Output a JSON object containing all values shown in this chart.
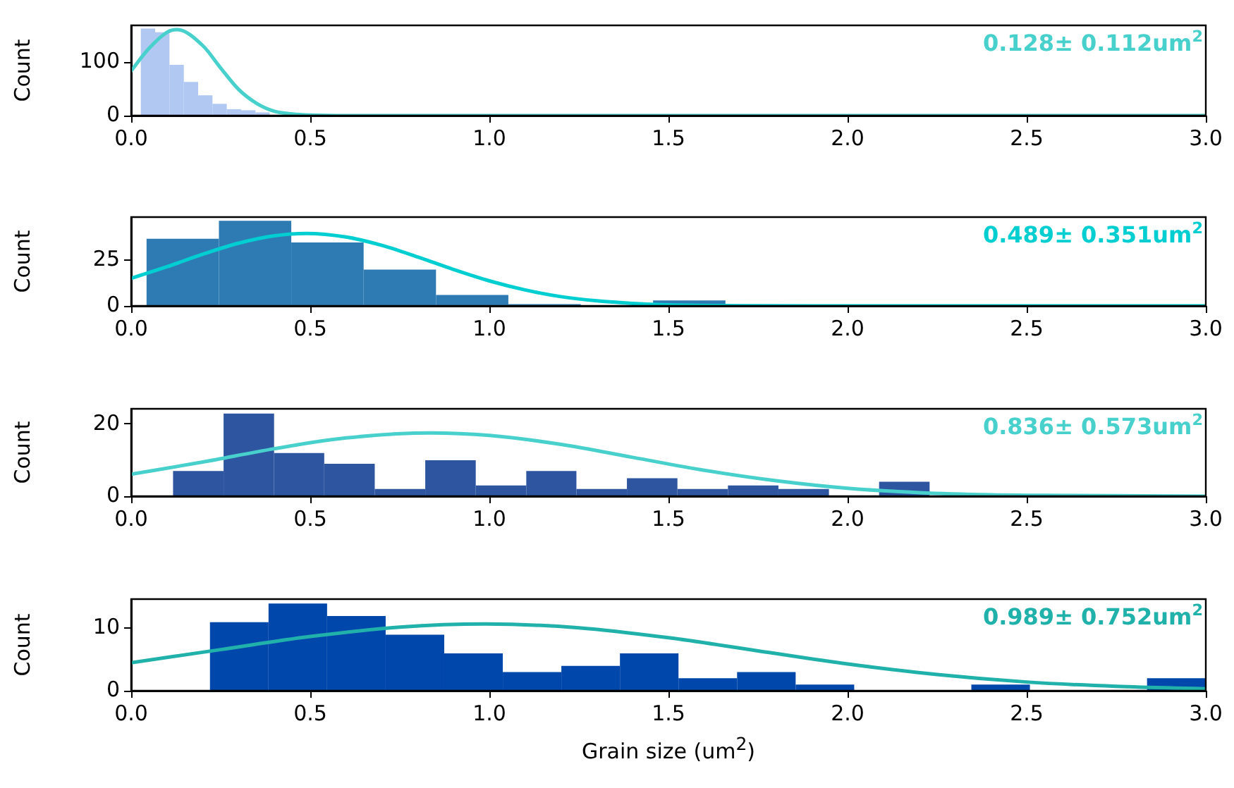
{
  "chart_data": [
    {
      "type": "histogram",
      "ylabel": "Count",
      "xlim": [
        0,
        3
      ],
      "ylim": [
        0,
        169
      ],
      "xticks": [
        {
          "value": 0,
          "label": "0.0"
        },
        {
          "value": 0.5,
          "label": "0.5"
        },
        {
          "value": 1,
          "label": "1.0"
        },
        {
          "value": 1.5,
          "label": "1.5"
        },
        {
          "value": 2,
          "label": "2.0"
        },
        {
          "value": 2.5,
          "label": "2.5"
        },
        {
          "value": 3,
          "label": "3.0"
        }
      ],
      "yticks": [
        0,
        100
      ],
      "annotations": [
        "0.128± 0.112um$^{2}$"
      ],
      "series": [
        {
          "type": "histogram",
          "color": "#b0c8f2",
          "bins": [
            0.027,
            0.067,
            0.107,
            0.147,
            0.187,
            0.227,
            0.267,
            0.307,
            0.347,
            0.387
          ],
          "values": [
            163,
            156,
            95,
            63,
            38,
            22,
            12,
            10,
            6
          ]
        },
        {
          "type": "line",
          "color": "#48d1cc",
          "x": [
            0,
            0.05,
            0.1,
            0.128,
            0.2,
            0.25,
            0.3,
            0.35,
            0.4,
            0.45,
            0.5,
            0.6,
            3.0
          ],
          "values": [
            84,
            126,
            156,
            161,
            131,
            89,
            49,
            23,
            8,
            3,
            1,
            0,
            0
          ]
        }
      ]
    },
    {
      "type": "histogram",
      "ylabel": "Count",
      "xlim": [
        0,
        3
      ],
      "ylim": [
        0,
        49
      ],
      "xticks": [
        {
          "value": 0,
          "label": "0.0"
        },
        {
          "value": 0.5,
          "label": "0.5"
        },
        {
          "value": 1,
          "label": "1.0"
        },
        {
          "value": 1.5,
          "label": "1.5"
        },
        {
          "value": 2,
          "label": "2.0"
        },
        {
          "value": 2.5,
          "label": "2.5"
        },
        {
          "value": 3,
          "label": "3.0"
        }
      ],
      "yticks": [
        0,
        25
      ],
      "annotations": [
        "0.489± 0.351um$^{2}$"
      ],
      "series": [
        {
          "type": "histogram",
          "color": "#2e7bb4",
          "bins": [
            0.043,
            0.245,
            0.447,
            0.649,
            0.851,
            1.053,
            1.255,
            1.457,
            1.659
          ],
          "values": [
            37,
            47,
            35,
            20,
            6,
            1,
            0,
            3
          ]
        },
        {
          "type": "line",
          "color": "#00ced1",
          "x": [
            0,
            0.1,
            0.2,
            0.3,
            0.4,
            0.489,
            0.6,
            0.7,
            0.8,
            0.9,
            1.0,
            1.1,
            1.2,
            1.3,
            1.4,
            1.5,
            1.7,
            2.0,
            3.0
          ],
          "values": [
            15.2,
            21.6,
            28.5,
            34.6,
            38.7,
            40,
            38,
            33.4,
            27,
            20.1,
            13.8,
            8.8,
            5.1,
            2.8,
            1.4,
            0.6,
            0.1,
            0,
            0
          ]
        }
      ]
    },
    {
      "type": "histogram",
      "ylabel": "Count",
      "xlim": [
        0,
        3
      ],
      "ylim": [
        0,
        24.3
      ],
      "xticks": [
        {
          "value": 0,
          "label": "0.0"
        },
        {
          "value": 0.5,
          "label": "0.5"
        },
        {
          "value": 1,
          "label": "1.0"
        },
        {
          "value": 1.5,
          "label": "1.5"
        },
        {
          "value": 2,
          "label": "2.0"
        },
        {
          "value": 2.5,
          "label": "2.5"
        },
        {
          "value": 3,
          "label": "3.0"
        }
      ],
      "yticks": [
        0,
        20
      ],
      "annotations": [
        "0.836± 0.573um$^{2}$"
      ],
      "series": [
        {
          "type": "histogram",
          "color": "#2e56a0",
          "bins": [
            0.117,
            0.258,
            0.399,
            0.539,
            0.68,
            0.821,
            0.962,
            1.103,
            1.243,
            1.384,
            1.525,
            1.666,
            1.807,
            1.948,
            2.088,
            2.229
          ],
          "values": [
            7,
            23,
            12,
            9,
            2,
            10,
            3,
            7,
            2,
            5,
            2,
            3,
            2,
            0,
            4
          ]
        },
        {
          "type": "line",
          "color": "#48d1cc",
          "x": [
            0,
            0.2,
            0.4,
            0.6,
            0.836,
            1.0,
            1.2,
            1.4,
            1.6,
            1.8,
            2.0,
            2.2,
            2.4,
            2.6,
            3.0
          ],
          "values": [
            6.1,
            9.5,
            13.2,
            16.2,
            17.6,
            16.9,
            14.4,
            10.8,
            7.2,
            4.3,
            2.2,
            1.0,
            0.4,
            0.2,
            0
          ]
        }
      ]
    },
    {
      "type": "histogram",
      "xlabel": "Grain size (um$^{2}$)",
      "ylabel": "Count",
      "xlim": [
        0,
        3
      ],
      "ylim": [
        0,
        14.7
      ],
      "xticks": [
        {
          "value": 0,
          "label": "0.0"
        },
        {
          "value": 0.5,
          "label": "0.5"
        },
        {
          "value": 1,
          "label": "1.0"
        },
        {
          "value": 1.5,
          "label": "1.5"
        },
        {
          "value": 2,
          "label": "2.0"
        },
        {
          "value": 2.5,
          "label": "2.5"
        },
        {
          "value": 3,
          "label": "3.0"
        }
      ],
      "yticks": [
        0,
        10
      ],
      "annotations": [
        "0.989± 0.752um$^{2}$"
      ],
      "series": [
        {
          "type": "histogram",
          "color": "#0047ab",
          "bins": [
            0.22,
            0.3835,
            0.547,
            0.7105,
            0.874,
            1.0375,
            1.201,
            1.3645,
            1.528,
            1.6915,
            1.855,
            2.0185,
            2.182,
            2.3455,
            2.509,
            2.6725,
            2.836,
            2.9995
          ],
          "values": [
            11,
            14,
            12,
            9,
            6,
            3,
            4,
            6,
            2,
            3,
            1,
            0,
            0,
            1,
            0,
            0,
            2
          ]
        },
        {
          "type": "line",
          "color": "#20b2aa",
          "x": [
            0,
            0.25,
            0.5,
            0.75,
            0.989,
            1.25,
            1.5,
            1.75,
            2.0,
            2.25,
            2.5,
            2.75,
            3.0
          ],
          "values": [
            4.5,
            6.6,
            8.7,
            10.2,
            10.7,
            10.1,
            8.5,
            6.4,
            4.3,
            2.6,
            1.4,
            0.7,
            0.3
          ]
        }
      ]
    }
  ]
}
